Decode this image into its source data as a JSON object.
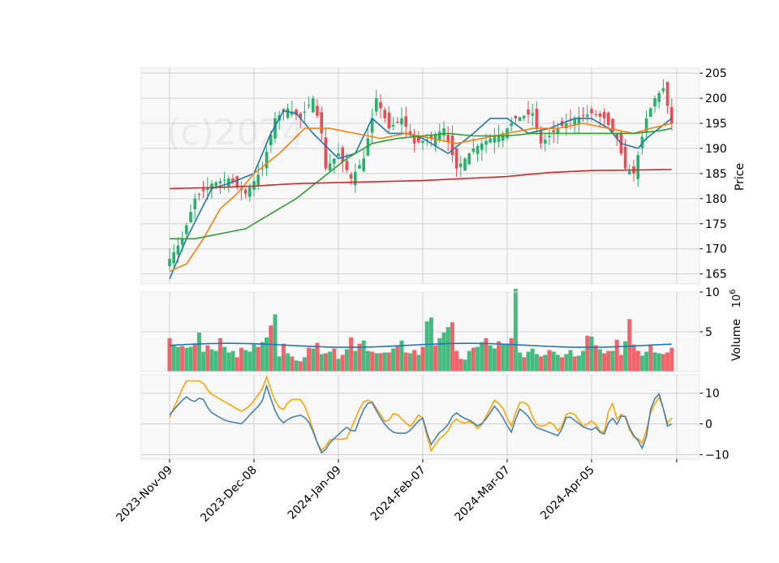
{
  "watermark": "(c)2024",
  "colors": {
    "panel_bg": "#f8f8f8",
    "grid": "#d0d0d0",
    "up": "#26b26a",
    "down": "#ef4a51",
    "ma_fast": "#1f77b4",
    "ma_mid": "#ff7f0e",
    "ma_slow": "#2ca02c",
    "ma_long": "#d62728",
    "vol_ma": "#1f77b4",
    "osc1": "#4682b4",
    "osc2": "#ffa500"
  },
  "chart_data": {
    "type": "candlestick",
    "x_ticks": [
      "2023-Nov-09",
      "2023-Dec-08",
      "2024-Jan-09",
      "2024-Feb-07",
      "2024-Mar-07",
      "2024-Apr-05"
    ],
    "x_tick_index": [
      0,
      20,
      40,
      60,
      80,
      100
    ],
    "n_bars": 120,
    "price_panel": {
      "ylabel": "Price",
      "ylim": [
        163,
        206
      ],
      "yticks": [
        165,
        170,
        175,
        180,
        185,
        190,
        195,
        200,
        205
      ],
      "close_anchors": [
        [
          0,
          168
        ],
        [
          3,
          172
        ],
        [
          6,
          180
        ],
        [
          10,
          183
        ],
        [
          14,
          184
        ],
        [
          18,
          181
        ],
        [
          22,
          186
        ],
        [
          25,
          196
        ],
        [
          28,
          198
        ],
        [
          31,
          196
        ],
        [
          34,
          200
        ],
        [
          36,
          193
        ],
        [
          37,
          186
        ],
        [
          40,
          189
        ],
        [
          43,
          184
        ],
        [
          46,
          188
        ],
        [
          49,
          200
        ],
        [
          52,
          194
        ],
        [
          55,
          196
        ],
        [
          58,
          191
        ],
        [
          62,
          192
        ],
        [
          65,
          194
        ],
        [
          68,
          186
        ],
        [
          72,
          190
        ],
        [
          76,
          192
        ],
        [
          79,
          193
        ],
        [
          82,
          196
        ],
        [
          86,
          197
        ],
        [
          88,
          191
        ],
        [
          92,
          194
        ],
        [
          96,
          196
        ],
        [
          100,
          197
        ],
        [
          103,
          196
        ],
        [
          106,
          192
        ],
        [
          108,
          186
        ],
        [
          110,
          185
        ],
        [
          113,
          196
        ],
        [
          115,
          200
        ],
        [
          117,
          202
        ],
        [
          119,
          195
        ]
      ],
      "ma_series": [
        {
          "key": "ma_fast",
          "anchors": [
            [
              0,
              164
            ],
            [
              4,
              172
            ],
            [
              10,
              182
            ],
            [
              14,
              183
            ],
            [
              20,
              185
            ],
            [
              24,
              193
            ],
            [
              27,
              197.5
            ],
            [
              30,
              197
            ],
            [
              34,
              193
            ],
            [
              40,
              188
            ],
            [
              44,
              189
            ],
            [
              48,
              196
            ],
            [
              52,
              193
            ],
            [
              56,
              193
            ],
            [
              60,
              192
            ],
            [
              66,
              189
            ],
            [
              72,
              193
            ],
            [
              76,
              196
            ],
            [
              80,
              196
            ],
            [
              85,
              193
            ],
            [
              90,
              194
            ],
            [
              96,
              196
            ],
            [
              100,
              196
            ],
            [
              104,
              194
            ],
            [
              107,
              191
            ],
            [
              111,
              190
            ],
            [
              113,
              192
            ],
            [
              119,
              196
            ]
          ]
        },
        {
          "key": "ma_mid",
          "anchors": [
            [
              0,
              165.5
            ],
            [
              4,
              167
            ],
            [
              8,
              172
            ],
            [
              12,
              178
            ],
            [
              16,
              181
            ],
            [
              20,
              185
            ],
            [
              26,
              189
            ],
            [
              32,
              194
            ],
            [
              38,
              194
            ],
            [
              44,
              193
            ],
            [
              50,
              192
            ],
            [
              56,
              193
            ],
            [
              62,
              192
            ],
            [
              68,
              191
            ],
            [
              74,
              192
            ],
            [
              80,
              193
            ],
            [
              86,
              194
            ],
            [
              92,
              194
            ],
            [
              98,
              195
            ],
            [
              104,
              194
            ],
            [
              110,
              193
            ],
            [
              114,
              194
            ],
            [
              119,
              195
            ]
          ]
        },
        {
          "key": "ma_slow",
          "anchors": [
            [
              0,
              172
            ],
            [
              6,
              172
            ],
            [
              12,
              173
            ],
            [
              18,
              174
            ],
            [
              24,
              177
            ],
            [
              30,
              180
            ],
            [
              36,
              184
            ],
            [
              42,
              188
            ],
            [
              48,
              191
            ],
            [
              54,
              192
            ],
            [
              60,
              192.5
            ],
            [
              66,
              193
            ],
            [
              72,
              192.5
            ],
            [
              80,
              192.5
            ],
            [
              86,
              193
            ],
            [
              92,
              193
            ],
            [
              98,
              193
            ],
            [
              104,
              193
            ],
            [
              110,
              193
            ],
            [
              116,
              193.5
            ],
            [
              119,
              194
            ]
          ]
        },
        {
          "key": "ma_long",
          "anchors": [
            [
              0,
              182
            ],
            [
              10,
              182.2
            ],
            [
              20,
              182.5
            ],
            [
              30,
              183
            ],
            [
              40,
              183.2
            ],
            [
              50,
              183.4
            ],
            [
              60,
              183.6
            ],
            [
              70,
              184
            ],
            [
              80,
              184.4
            ],
            [
              90,
              185.2
            ],
            [
              100,
              185.6
            ],
            [
              110,
              185.7
            ],
            [
              119,
              185.8
            ]
          ]
        }
      ]
    },
    "volume_panel": {
      "ylabel": "Volume",
      "scale_label": "10^6",
      "ylim": [
        0,
        10
      ],
      "yticks": [
        5,
        10
      ],
      "values": [
        4.2,
        3.4,
        3.1,
        3.2,
        3.0,
        3.1,
        3.5,
        4.9,
        2.5,
        3.3,
        2.8,
        2.6,
        4.2,
        3.1,
        2.4,
        2.6,
        1.8,
        3.0,
        2.7,
        2.5,
        3.4,
        3.1,
        3.7,
        4.3,
        5.8,
        7.2,
        1.9,
        3.5,
        2.3,
        1.9,
        1.4,
        1.3,
        1.8,
        3.0,
        2.9,
        3.6,
        2.2,
        2.3,
        2.5,
        2.9,
        1.6,
        2.1,
        2.8,
        4.3,
        2.6,
        3.5,
        3.9,
        2.6,
        2.5,
        2.3,
        2.3,
        2.4,
        2.4,
        2.9,
        3.2,
        3.9,
        2.4,
        2.3,
        2.7,
        2.1,
        3.1,
        6.3,
        6.8,
        3.3,
        4.2,
        4.9,
        5.6,
        6.2,
        2.6,
        1.6,
        1.5,
        2.6,
        3.0,
        3.1,
        3.7,
        4.2,
        3.3,
        2.9,
        3.8,
        3.4,
        3.5,
        4.2,
        10.4,
        2.4,
        1.8,
        2.5,
        2.9,
        2.2,
        1.9,
        2.1,
        2.7,
        2.5,
        2.1,
        1.8,
        2.2,
        2.7,
        1.9,
        2.0,
        2.6,
        4.5,
        4.4,
        3.3,
        2.8,
        2.3,
        2.6,
        2.6,
        4.0,
        2.1,
        3.8,
        6.6,
        3.4,
        2.6,
        2.0,
        2.5,
        3.4,
        2.4,
        2.3,
        2.2,
        2.4,
        3.0
      ],
      "ma_level": 3.3
    },
    "osc_panel": {
      "ylim": [
        -11.5,
        16
      ],
      "yticks": [
        -10,
        0,
        10
      ],
      "line1_anchors": [
        [
          0,
          3
        ],
        [
          2,
          6
        ],
        [
          4,
          9
        ],
        [
          6,
          7
        ],
        [
          8,
          9
        ],
        [
          10,
          4
        ],
        [
          14,
          1
        ],
        [
          18,
          0
        ],
        [
          20,
          3
        ],
        [
          23,
          7
        ],
        [
          24,
          13
        ],
        [
          26,
          5
        ],
        [
          28,
          0
        ],
        [
          30,
          2
        ],
        [
          33,
          3
        ],
        [
          35,
          0
        ],
        [
          37,
          -7
        ],
        [
          38,
          -10
        ],
        [
          40,
          -6
        ],
        [
          44,
          -1
        ],
        [
          46,
          -3
        ],
        [
          48,
          4
        ],
        [
          50,
          8
        ],
        [
          52,
          3
        ],
        [
          54,
          -1
        ],
        [
          56,
          -3
        ],
        [
          59,
          -3
        ],
        [
          60,
          -2
        ],
        [
          62,
          1
        ],
        [
          63,
          2
        ],
        [
          65,
          -7
        ],
        [
          67,
          -3
        ],
        [
          69,
          -1
        ],
        [
          71,
          4
        ],
        [
          73,
          2
        ],
        [
          75,
          1
        ],
        [
          77,
          -1
        ],
        [
          79,
          2
        ],
        [
          81,
          6
        ],
        [
          83,
          2
        ],
        [
          85,
          -3
        ],
        [
          87,
          5
        ],
        [
          89,
          3
        ],
        [
          91,
          -1
        ],
        [
          93,
          -2
        ],
        [
          95,
          -3
        ],
        [
          97,
          -4
        ],
        [
          99,
          3
        ],
        [
          101,
          1
        ],
        [
          103,
          -1
        ],
        [
          105,
          -2
        ],
        [
          106,
          -1
        ],
        [
          108,
          -4
        ],
        [
          110,
          3
        ],
        [
          111,
          -1
        ],
        [
          113,
          4
        ],
        [
          115,
          -3
        ],
        [
          117,
          -6
        ],
        [
          118,
          -9
        ],
        [
          119,
          -2
        ],
        [
          120,
          7
        ],
        [
          122,
          10
        ],
        [
          124,
          -1
        ],
        [
          125,
          0
        ]
      ],
      "line2_anchors": [
        [
          0,
          2
        ],
        [
          2,
          8
        ],
        [
          4,
          14
        ],
        [
          6,
          14
        ],
        [
          8,
          14
        ],
        [
          10,
          10
        ],
        [
          14,
          7
        ],
        [
          18,
          4
        ],
        [
          20,
          6
        ],
        [
          23,
          11
        ],
        [
          24,
          16
        ],
        [
          26,
          8
        ],
        [
          28,
          4
        ],
        [
          30,
          8
        ],
        [
          33,
          8
        ],
        [
          35,
          1
        ],
        [
          37,
          -7
        ],
        [
          38,
          -9
        ],
        [
          40,
          -5
        ],
        [
          44,
          -5
        ],
        [
          46,
          1
        ],
        [
          48,
          7
        ],
        [
          50,
          8
        ],
        [
          52,
          4
        ],
        [
          54,
          0
        ],
        [
          56,
          4
        ],
        [
          59,
          0
        ],
        [
          60,
          -1
        ],
        [
          62,
          3
        ],
        [
          63,
          2
        ],
        [
          65,
          -9
        ],
        [
          67,
          -5
        ],
        [
          69,
          -3
        ],
        [
          71,
          2
        ],
        [
          73,
          0
        ],
        [
          75,
          1
        ],
        [
          77,
          -2
        ],
        [
          79,
          3
        ],
        [
          81,
          8
        ],
        [
          83,
          5
        ],
        [
          85,
          -1
        ],
        [
          87,
          7
        ],
        [
          89,
          7
        ],
        [
          91,
          0
        ],
        [
          93,
          -1
        ],
        [
          95,
          1
        ],
        [
          97,
          -3
        ],
        [
          99,
          4
        ],
        [
          101,
          3
        ],
        [
          103,
          -1
        ],
        [
          105,
          1
        ],
        [
          106,
          0
        ],
        [
          108,
          -4
        ],
        [
          110,
          9
        ],
        [
          111,
          1
        ],
        [
          113,
          4
        ],
        [
          115,
          -4
        ],
        [
          117,
          -5
        ],
        [
          118,
          -7
        ],
        [
          119,
          0
        ],
        [
          120,
          5
        ],
        [
          122,
          9
        ],
        [
          124,
          0
        ],
        [
          125,
          2
        ]
      ]
    }
  }
}
